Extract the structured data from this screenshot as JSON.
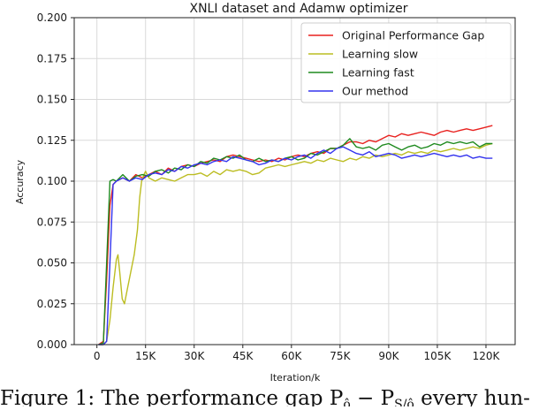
{
  "chart_data": {
    "type": "line",
    "title": "XNLI dataset and Adamw optimizer",
    "xlabel": "Iteration/k",
    "ylabel": "Accuracy",
    "xlim": [
      -7,
      129
    ],
    "ylim": [
      0,
      0.2
    ],
    "x_ticks": [
      0,
      15,
      30,
      45,
      60,
      75,
      90,
      105,
      120
    ],
    "x_tick_labels": [
      "0",
      "15K",
      "30K",
      "45K",
      "60K",
      "75K",
      "90K",
      "105K",
      "120K"
    ],
    "y_ticks": [
      0,
      0.025,
      0.05,
      0.075,
      0.1,
      0.125,
      0.15,
      0.175,
      0.2
    ],
    "y_tick_labels": [
      "0.000",
      "0.025",
      "0.050",
      "0.075",
      "0.100",
      "0.125",
      "0.150",
      "0.175",
      "0.200"
    ],
    "grid": true,
    "legend_position": "top-right",
    "series": [
      {
        "name": "Original Performance Gap",
        "color": "#e8211f",
        "points": [
          [
            0.5,
            0
          ],
          [
            2,
            0.002
          ],
          [
            3,
            0.04
          ],
          [
            4,
            0.085
          ],
          [
            5,
            0.098
          ],
          [
            6,
            0.1
          ],
          [
            8,
            0.102
          ],
          [
            10,
            0.1
          ],
          [
            12,
            0.104
          ],
          [
            14,
            0.102
          ],
          [
            16,
            0.104
          ],
          [
            18,
            0.106
          ],
          [
            20,
            0.104
          ],
          [
            22,
            0.108
          ],
          [
            24,
            0.106
          ],
          [
            26,
            0.109
          ],
          [
            28,
            0.11
          ],
          [
            30,
            0.109
          ],
          [
            32,
            0.111
          ],
          [
            34,
            0.112
          ],
          [
            36,
            0.113
          ],
          [
            38,
            0.112
          ],
          [
            40,
            0.115
          ],
          [
            42,
            0.116
          ],
          [
            44,
            0.115
          ],
          [
            46,
            0.114
          ],
          [
            48,
            0.113
          ],
          [
            50,
            0.112
          ],
          [
            52,
            0.113
          ],
          [
            54,
            0.112
          ],
          [
            56,
            0.114
          ],
          [
            58,
            0.113
          ],
          [
            60,
            0.115
          ],
          [
            62,
            0.116
          ],
          [
            64,
            0.115
          ],
          [
            66,
            0.117
          ],
          [
            68,
            0.118
          ],
          [
            70,
            0.117
          ],
          [
            72,
            0.12
          ],
          [
            74,
            0.12
          ],
          [
            76,
            0.122
          ],
          [
            78,
            0.124
          ],
          [
            80,
            0.124
          ],
          [
            82,
            0.123
          ],
          [
            84,
            0.125
          ],
          [
            86,
            0.124
          ],
          [
            88,
            0.126
          ],
          [
            90,
            0.128
          ],
          [
            92,
            0.127
          ],
          [
            94,
            0.129
          ],
          [
            96,
            0.128
          ],
          [
            98,
            0.129
          ],
          [
            100,
            0.13
          ],
          [
            102,
            0.129
          ],
          [
            104,
            0.128
          ],
          [
            106,
            0.13
          ],
          [
            108,
            0.131
          ],
          [
            110,
            0.13
          ],
          [
            112,
            0.131
          ],
          [
            114,
            0.132
          ],
          [
            116,
            0.131
          ],
          [
            118,
            0.132
          ],
          [
            120,
            0.133
          ],
          [
            122,
            0.134
          ]
        ]
      },
      {
        "name": "Learning slow",
        "color": "#bcbd22",
        "points": [
          [
            0.5,
            0
          ],
          [
            2,
            0
          ],
          [
            3,
            0.002
          ],
          [
            4,
            0.015
          ],
          [
            5,
            0.035
          ],
          [
            6,
            0.052
          ],
          [
            6.5,
            0.055
          ],
          [
            7,
            0.045
          ],
          [
            7.8,
            0.028
          ],
          [
            8.5,
            0.025
          ],
          [
            9.5,
            0.035
          ],
          [
            10.5,
            0.045
          ],
          [
            11.5,
            0.055
          ],
          [
            12.5,
            0.07
          ],
          [
            13.2,
            0.09
          ],
          [
            13.8,
            0.1
          ],
          [
            14.5,
            0.104
          ],
          [
            15,
            0.106
          ],
          [
            16,
            0.102
          ],
          [
            18,
            0.1
          ],
          [
            20,
            0.102
          ],
          [
            22,
            0.101
          ],
          [
            24,
            0.1
          ],
          [
            26,
            0.102
          ],
          [
            28,
            0.104
          ],
          [
            30,
            0.104
          ],
          [
            32,
            0.105
          ],
          [
            34,
            0.103
          ],
          [
            36,
            0.106
          ],
          [
            38,
            0.104
          ],
          [
            40,
            0.107
          ],
          [
            42,
            0.106
          ],
          [
            44,
            0.107
          ],
          [
            46,
            0.106
          ],
          [
            48,
            0.104
          ],
          [
            50,
            0.105
          ],
          [
            52,
            0.108
          ],
          [
            54,
            0.109
          ],
          [
            56,
            0.11
          ],
          [
            58,
            0.109
          ],
          [
            60,
            0.11
          ],
          [
            62,
            0.111
          ],
          [
            64,
            0.112
          ],
          [
            66,
            0.111
          ],
          [
            68,
            0.113
          ],
          [
            70,
            0.112
          ],
          [
            72,
            0.114
          ],
          [
            74,
            0.113
          ],
          [
            76,
            0.112
          ],
          [
            78,
            0.114
          ],
          [
            80,
            0.113
          ],
          [
            82,
            0.115
          ],
          [
            84,
            0.114
          ],
          [
            86,
            0.116
          ],
          [
            88,
            0.115
          ],
          [
            90,
            0.116
          ],
          [
            92,
            0.117
          ],
          [
            94,
            0.116
          ],
          [
            96,
            0.118
          ],
          [
            98,
            0.117
          ],
          [
            100,
            0.118
          ],
          [
            102,
            0.117
          ],
          [
            104,
            0.119
          ],
          [
            106,
            0.118
          ],
          [
            108,
            0.119
          ],
          [
            110,
            0.12
          ],
          [
            112,
            0.119
          ],
          [
            114,
            0.12
          ],
          [
            116,
            0.121
          ],
          [
            118,
            0.12
          ],
          [
            120,
            0.122
          ],
          [
            122,
            0.123
          ]
        ]
      },
      {
        "name": "Learning fast",
        "color": "#1f8a1f",
        "points": [
          [
            0.5,
            0
          ],
          [
            2,
            0.001
          ],
          [
            3,
            0.05
          ],
          [
            4,
            0.1
          ],
          [
            5,
            0.101
          ],
          [
            6,
            0.1
          ],
          [
            8,
            0.104
          ],
          [
            10,
            0.1
          ],
          [
            12,
            0.103
          ],
          [
            14,
            0.104
          ],
          [
            16,
            0.103
          ],
          [
            18,
            0.106
          ],
          [
            20,
            0.107
          ],
          [
            22,
            0.105
          ],
          [
            24,
            0.108
          ],
          [
            26,
            0.107
          ],
          [
            28,
            0.11
          ],
          [
            30,
            0.109
          ],
          [
            32,
            0.112
          ],
          [
            34,
            0.111
          ],
          [
            36,
            0.114
          ],
          [
            38,
            0.113
          ],
          [
            40,
            0.115
          ],
          [
            42,
            0.114
          ],
          [
            44,
            0.116
          ],
          [
            46,
            0.113
          ],
          [
            48,
            0.112
          ],
          [
            50,
            0.114
          ],
          [
            52,
            0.112
          ],
          [
            54,
            0.113
          ],
          [
            56,
            0.112
          ],
          [
            58,
            0.114
          ],
          [
            60,
            0.115
          ],
          [
            62,
            0.113
          ],
          [
            64,
            0.114
          ],
          [
            66,
            0.117
          ],
          [
            68,
            0.116
          ],
          [
            70,
            0.118
          ],
          [
            72,
            0.12
          ],
          [
            74,
            0.12
          ],
          [
            76,
            0.122
          ],
          [
            78,
            0.126
          ],
          [
            80,
            0.121
          ],
          [
            82,
            0.12
          ],
          [
            84,
            0.121
          ],
          [
            86,
            0.119
          ],
          [
            88,
            0.122
          ],
          [
            90,
            0.123
          ],
          [
            92,
            0.121
          ],
          [
            94,
            0.119
          ],
          [
            96,
            0.121
          ],
          [
            98,
            0.122
          ],
          [
            100,
            0.12
          ],
          [
            102,
            0.121
          ],
          [
            104,
            0.123
          ],
          [
            106,
            0.122
          ],
          [
            108,
            0.124
          ],
          [
            110,
            0.123
          ],
          [
            112,
            0.124
          ],
          [
            114,
            0.123
          ],
          [
            116,
            0.124
          ],
          [
            118,
            0.121
          ],
          [
            120,
            0.123
          ],
          [
            122,
            0.123
          ]
        ]
      },
      {
        "name": "Our method",
        "color": "#3333ee",
        "points": [
          [
            0.5,
            0
          ],
          [
            2,
            0
          ],
          [
            3,
            0.002
          ],
          [
            4,
            0.05
          ],
          [
            5,
            0.098
          ],
          [
            6,
            0.1
          ],
          [
            8,
            0.102
          ],
          [
            10,
            0.1
          ],
          [
            12,
            0.102
          ],
          [
            14,
            0.101
          ],
          [
            16,
            0.104
          ],
          [
            18,
            0.105
          ],
          [
            20,
            0.104
          ],
          [
            22,
            0.107
          ],
          [
            24,
            0.106
          ],
          [
            26,
            0.109
          ],
          [
            28,
            0.108
          ],
          [
            30,
            0.11
          ],
          [
            32,
            0.111
          ],
          [
            34,
            0.11
          ],
          [
            36,
            0.112
          ],
          [
            38,
            0.113
          ],
          [
            40,
            0.112
          ],
          [
            42,
            0.115
          ],
          [
            44,
            0.114
          ],
          [
            46,
            0.113
          ],
          [
            48,
            0.112
          ],
          [
            50,
            0.11
          ],
          [
            52,
            0.111
          ],
          [
            54,
            0.113
          ],
          [
            56,
            0.112
          ],
          [
            58,
            0.114
          ],
          [
            60,
            0.113
          ],
          [
            62,
            0.115
          ],
          [
            64,
            0.116
          ],
          [
            66,
            0.114
          ],
          [
            68,
            0.117
          ],
          [
            70,
            0.119
          ],
          [
            72,
            0.117
          ],
          [
            74,
            0.12
          ],
          [
            76,
            0.121
          ],
          [
            78,
            0.119
          ],
          [
            80,
            0.117
          ],
          [
            82,
            0.116
          ],
          [
            84,
            0.118
          ],
          [
            86,
            0.115
          ],
          [
            88,
            0.116
          ],
          [
            90,
            0.117
          ],
          [
            92,
            0.116
          ],
          [
            94,
            0.114
          ],
          [
            96,
            0.115
          ],
          [
            98,
            0.116
          ],
          [
            100,
            0.115
          ],
          [
            102,
            0.116
          ],
          [
            104,
            0.117
          ],
          [
            106,
            0.116
          ],
          [
            108,
            0.115
          ],
          [
            110,
            0.116
          ],
          [
            112,
            0.115
          ],
          [
            114,
            0.116
          ],
          [
            116,
            0.114
          ],
          [
            118,
            0.115
          ],
          [
            120,
            0.114
          ],
          [
            122,
            0.114
          ]
        ]
      }
    ]
  },
  "caption": {
    "text": "Figure 1: The performance gap P",
    "sub1": "ô",
    "minus": " − P",
    "sub2": "S/ô",
    "tail": " every hun-"
  }
}
